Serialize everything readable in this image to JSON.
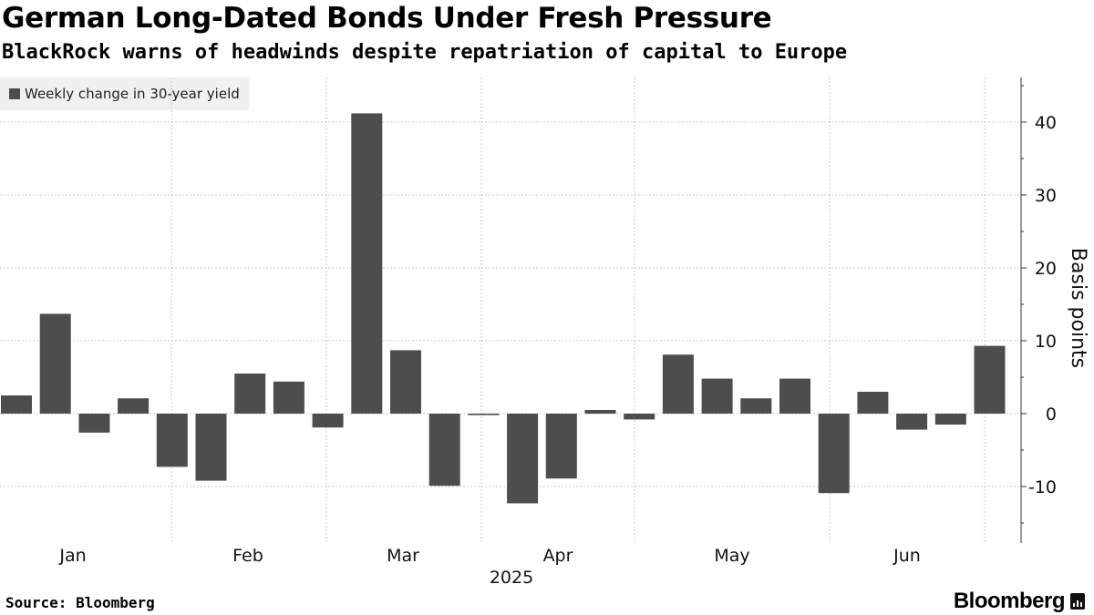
{
  "header": {
    "title": "German Long-Dated Bonds Under Fresh Pressure",
    "subtitle": "BlackRock warns of headwinds despite repatriation of capital to Europe"
  },
  "footer": {
    "source": "Source: Bloomberg",
    "brand": "Bloomberg"
  },
  "colors": {
    "bar": "#4d4d4d",
    "grid": "#c8c8c8",
    "legend_bg": "#f0f0f0"
  },
  "chart_data": {
    "type": "bar",
    "title": "German Long-Dated Bonds Under Fresh Pressure",
    "subtitle": "BlackRock warns of headwinds despite repatriation of capital to Europe",
    "legend": [
      "Weekly change in 30-year yield"
    ],
    "legend_position": "top-left",
    "xlabel": "2025",
    "ylabel": "Basis points",
    "y_axis_side": "right",
    "ylim": [
      -17.5,
      46
    ],
    "yticks": [
      -10,
      0,
      10,
      20,
      30,
      40
    ],
    "grid": true,
    "month_labels": [
      "Jan",
      "Feb",
      "Mar",
      "Apr",
      "May",
      "Jun"
    ],
    "series": [
      {
        "name": "Weekly change in 30-year yield",
        "values": [
          2.5,
          13.7,
          -2.6,
          2.1,
          -7.3,
          -9.2,
          5.5,
          4.4,
          -1.9,
          41.2,
          8.7,
          -9.9,
          -0.2,
          -12.3,
          -8.9,
          0.5,
          -0.8,
          8.1,
          4.8,
          2.1,
          4.8,
          -10.9,
          3.0,
          -2.2,
          -1.5,
          9.3
        ]
      }
    ]
  }
}
